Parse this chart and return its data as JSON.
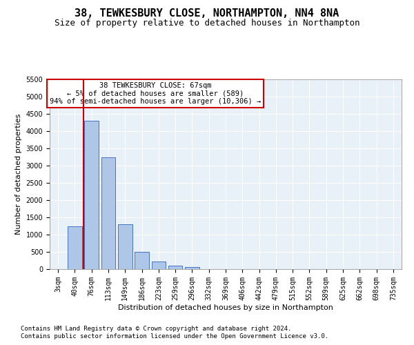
{
  "title": "38, TEWKESBURY CLOSE, NORTHAMPTON, NN4 8NA",
  "subtitle": "Size of property relative to detached houses in Northampton",
  "xlabel": "Distribution of detached houses by size in Northampton",
  "ylabel": "Number of detached properties",
  "footnote1": "Contains HM Land Registry data © Crown copyright and database right 2024.",
  "footnote2": "Contains public sector information licensed under the Open Government Licence v3.0.",
  "annotation_title": "38 TEWKESBURY CLOSE: 67sqm",
  "annotation_line2": "← 5% of detached houses are smaller (589)",
  "annotation_line3": "94% of semi-detached houses are larger (10,306) →",
  "bar_labels": [
    "3sqm",
    "40sqm",
    "76sqm",
    "113sqm",
    "149sqm",
    "186sqm",
    "223sqm",
    "259sqm",
    "296sqm",
    "332sqm",
    "369sqm",
    "406sqm",
    "442sqm",
    "479sqm",
    "515sqm",
    "552sqm",
    "589sqm",
    "625sqm",
    "662sqm",
    "698sqm",
    "735sqm"
  ],
  "bar_values": [
    0,
    1250,
    4300,
    3250,
    1300,
    500,
    225,
    100,
    60,
    0,
    0,
    0,
    0,
    0,
    0,
    0,
    0,
    0,
    0,
    0,
    0
  ],
  "bar_color": "#aec6e8",
  "bar_edge_color": "#4472c4",
  "vline_x": 1.5,
  "vline_color": "#cc0000",
  "ylim": [
    0,
    5500
  ],
  "yticks": [
    0,
    500,
    1000,
    1500,
    2000,
    2500,
    3000,
    3500,
    4000,
    4500,
    5000,
    5500
  ],
  "background_color": "#e8f0f8",
  "annotation_box_color": "#ffffff",
  "annotation_box_edgecolor": "#cc0000",
  "title_fontsize": 11,
  "subtitle_fontsize": 9,
  "axis_label_fontsize": 8,
  "tick_fontsize": 7,
  "annotation_fontsize": 7.5,
  "footnote_fontsize": 6.5
}
